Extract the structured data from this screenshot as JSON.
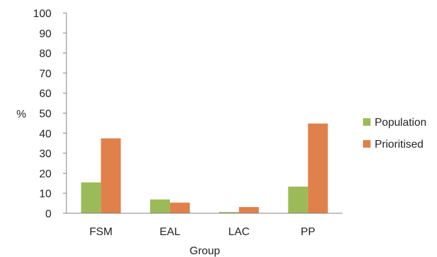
{
  "chart_data": {
    "type": "bar",
    "categories": [
      "FSM",
      "EAL",
      "LAC",
      "PP"
    ],
    "series": [
      {
        "name": "Population",
        "values": [
          15.4,
          6.9,
          0.6,
          13.3
        ],
        "color": "#9BBB59"
      },
      {
        "name": "Prioritised",
        "values": [
          37.4,
          5.3,
          3.1,
          44.8
        ],
        "color": "#E0804A"
      }
    ],
    "xlabel": "Group",
    "ylabel": "%",
    "ylim": [
      0,
      100
    ],
    "yticks": [
      "0",
      "10",
      "20",
      "30",
      "40",
      "50",
      "60",
      "70",
      "80",
      "90",
      "100"
    ],
    "grid": false,
    "legend": "right"
  }
}
